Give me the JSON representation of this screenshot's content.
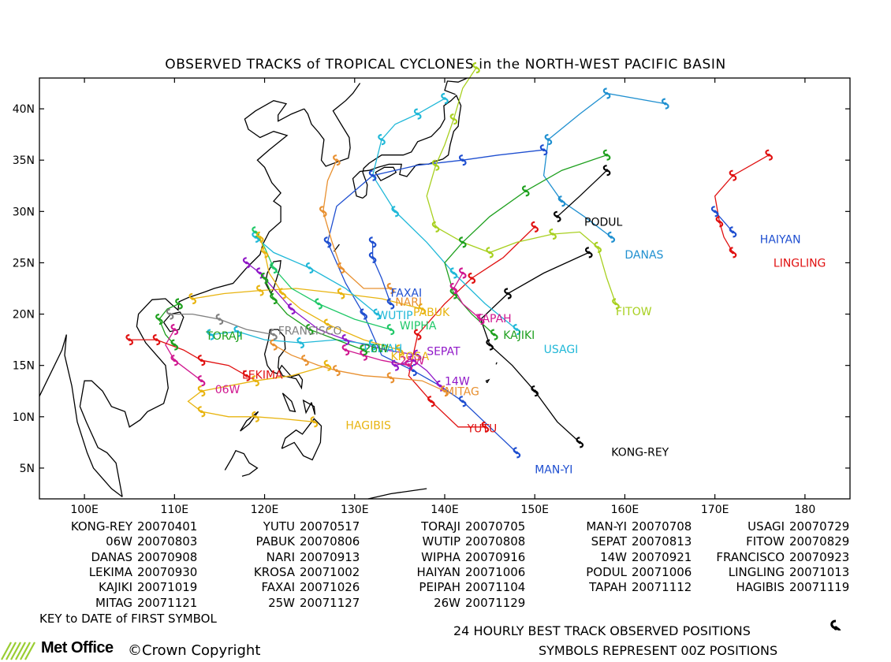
{
  "title": "OBSERVED TRACKS of TROPICAL CYCLONES in the NORTH-WEST PACIFIC BASIN",
  "map": {
    "lon_range": [
      95,
      185
    ],
    "lat_range": [
      2,
      43
    ],
    "x_ticks": [
      "100E",
      "110E",
      "120E",
      "130E",
      "140E",
      "150E",
      "160E",
      "170E",
      "180"
    ],
    "y_ticks": [
      "5N",
      "10N",
      "15N",
      "20N",
      "25N",
      "30N",
      "35N",
      "40N"
    ]
  },
  "storm_labels": [
    {
      "name": "KONG-REY",
      "color": "#000000",
      "lon": 158.5,
      "lat": 6.2
    },
    {
      "name": "YUTU",
      "color": "#e01010",
      "lon": 142.5,
      "lat": 8.5
    },
    {
      "name": "TORAJI",
      "color": "#1ea01e",
      "lon": 113.5,
      "lat": 17.5
    },
    {
      "name": "MAN-YI",
      "color": "#1f4fd0",
      "lon": 150,
      "lat": 4.5
    },
    {
      "name": "USAGI",
      "color": "#20b8d8",
      "lon": 151,
      "lat": 16.2
    },
    {
      "name": "06W",
      "color": "#d01890",
      "lon": 114.5,
      "lat": 12.3
    },
    {
      "name": "PABUK",
      "color": "#e8b410",
      "lon": 136.5,
      "lat": 19.8
    },
    {
      "name": "WUTIP",
      "color": "#20b8d8",
      "lon": 132.5,
      "lat": 19.5
    },
    {
      "name": "SEPAT",
      "color": "#9018c8",
      "lon": 138,
      "lat": 16.0
    },
    {
      "name": "FITOW",
      "color": "#a8d020",
      "lon": 159,
      "lat": 19.9
    },
    {
      "name": "DANAS",
      "color": "#2090d0",
      "lon": 160,
      "lat": 25.4
    },
    {
      "name": "NARI",
      "color": "#e89030",
      "lon": 134.5,
      "lat": 20.8
    },
    {
      "name": "WIPHA",
      "color": "#20c868",
      "lon": 135,
      "lat": 18.5
    },
    {
      "name": "14W",
      "color": "#9018c8",
      "lon": 140,
      "lat": 13.1
    },
    {
      "name": "FRANCISCO",
      "color": "#808080",
      "lon": 121.5,
      "lat": 18.0
    },
    {
      "name": "LEKIMA",
      "color": "#e01010",
      "lon": 117.5,
      "lat": 13.7
    },
    {
      "name": "KROSA",
      "color": "#e8b410",
      "lon": 134,
      "lat": 15.5
    },
    {
      "name": "HAIYAN",
      "color": "#1f4fd0",
      "lon": 175,
      "lat": 26.9
    },
    {
      "name": "PODUL",
      "color": "#000000",
      "lon": 155.5,
      "lat": 28.6
    },
    {
      "name": "LINGLING",
      "color": "#e01010",
      "lon": 176.5,
      "lat": 24.6
    },
    {
      "name": "KAJIKI",
      "color": "#1ea01e",
      "lon": 146.5,
      "lat": 17.6
    },
    {
      "name": "FAXAI",
      "color": "#1f4fd0",
      "lon": 134,
      "lat": 21.7
    },
    {
      "name": "PEIPAH",
      "color": "#20b8d8",
      "lon": 131,
      "lat": 16.3
    },
    {
      "name": "TAPAH",
      "color": "#d01890",
      "lon": 143.5,
      "lat": 19.2
    },
    {
      "name": "HAGIBIS",
      "color": "#e8b410",
      "lon": 129,
      "lat": 8.8
    },
    {
      "name": "MITAG",
      "color": "#e89030",
      "lon": 140,
      "lat": 12.1
    },
    {
      "name": "25W",
      "color": "#d01890",
      "lon": 135,
      "lat": 15.1
    },
    {
      "name": "26W",
      "color": "#1ea01e",
      "lon": 131,
      "lat": 16.3
    }
  ],
  "tracks": [
    {
      "name": "KONG-REY",
      "color": "#000000",
      "points": [
        [
          155,
          7.5
        ],
        [
          152.5,
          9.5
        ],
        [
          150,
          12.5
        ],
        [
          147.5,
          15
        ],
        [
          145,
          17
        ],
        [
          144,
          19.5
        ],
        [
          147,
          22
        ],
        [
          151,
          24
        ],
        [
          156,
          26
        ]
      ]
    },
    {
      "name": "YUTU",
      "color": "#e01010",
      "points": [
        [
          144.5,
          9
        ],
        [
          141.5,
          9
        ],
        [
          138.5,
          11.5
        ],
        [
          136,
          14
        ],
        [
          137,
          18
        ],
        [
          140,
          21
        ],
        [
          143,
          23.5
        ],
        [
          146.5,
          25.5
        ],
        [
          150,
          28.5
        ]
      ]
    },
    {
      "name": "TORAJI",
      "color": "#1ea01e",
      "points": [
        [
          110,
          17
        ],
        [
          109,
          18
        ],
        [
          108.3,
          19.5
        ],
        [
          109.2,
          20.5
        ],
        [
          110.5,
          21
        ]
      ]
    },
    {
      "name": "MAN-YI",
      "color": "#1f4fd0",
      "points": [
        [
          148,
          6.5
        ],
        [
          145,
          9
        ],
        [
          142,
          11.5
        ],
        [
          139.5,
          13
        ],
        [
          136.5,
          14.5
        ],
        [
          133,
          16
        ],
        [
          131,
          20
        ],
        [
          129,
          23
        ],
        [
          127,
          27
        ],
        [
          128,
          30.5
        ],
        [
          132,
          33.5
        ],
        [
          137,
          34.5
        ],
        [
          142,
          35
        ],
        [
          146,
          35.5
        ],
        [
          151,
          36
        ]
      ]
    },
    {
      "name": "USAGI",
      "color": "#20b8d8",
      "points": [
        [
          148,
          18.5
        ],
        [
          144.5,
          21
        ],
        [
          141,
          24
        ],
        [
          138,
          27
        ],
        [
          134.5,
          30
        ],
        [
          132,
          33.5
        ],
        [
          133,
          37
        ],
        [
          134.5,
          38.5
        ],
        [
          137,
          39.5
        ],
        [
          140,
          41
        ]
      ]
    },
    {
      "name": "06W",
      "color": "#d01890",
      "points": [
        [
          113,
          13.5
        ],
        [
          111.5,
          14.5
        ],
        [
          110,
          15.5
        ],
        [
          109,
          17
        ],
        [
          110,
          18.5
        ]
      ]
    },
    {
      "name": "PABUK",
      "color": "#e8b410",
      "points": [
        [
          137.5,
          20.5
        ],
        [
          133,
          21.5
        ],
        [
          128.5,
          22
        ],
        [
          123.5,
          22.5
        ],
        [
          119.5,
          22.3
        ],
        [
          115.5,
          22
        ],
        [
          112,
          21.5
        ]
      ]
    },
    {
      "name": "WUTIP",
      "color": "#20b8d8",
      "points": [
        [
          132.5,
          20
        ],
        [
          129,
          22.5
        ],
        [
          125,
          24.5
        ],
        [
          121,
          26
        ],
        [
          119,
          27.5
        ]
      ]
    },
    {
      "name": "SEPAT",
      "color": "#9018c8",
      "points": [
        [
          137,
          16
        ],
        [
          133.5,
          16.5
        ],
        [
          129,
          17.5
        ],
        [
          126,
          18.5
        ],
        [
          123,
          20.5
        ],
        [
          121,
          22.5
        ],
        [
          119.5,
          24
        ],
        [
          118,
          25
        ]
      ]
    },
    {
      "name": "FITOW",
      "color": "#a8d020",
      "points": [
        [
          159,
          21
        ],
        [
          158,
          23.5
        ],
        [
          157,
          26.5
        ],
        [
          155,
          28
        ],
        [
          152,
          27.8
        ],
        [
          148,
          27
        ],
        [
          145,
          26
        ],
        [
          142,
          27
        ],
        [
          139,
          28.5
        ],
        [
          138,
          31.5
        ],
        [
          139,
          34.5
        ],
        [
          140,
          36.5
        ],
        [
          141,
          39
        ],
        [
          142,
          42
        ],
        [
          143.5,
          44
        ]
      ]
    },
    {
      "name": "DANAS",
      "color": "#2090d0",
      "points": [
        [
          158.5,
          27.5
        ],
        [
          155.5,
          29.5
        ],
        [
          153,
          31
        ],
        [
          151,
          33.5
        ],
        [
          151.5,
          37
        ],
        [
          155,
          39.5
        ],
        [
          158,
          41.5
        ],
        [
          164.5,
          40.5
        ]
      ]
    },
    {
      "name": "NARI",
      "color": "#e89030",
      "points": [
        [
          134,
          22.5
        ],
        [
          131,
          22.5
        ],
        [
          128.5,
          24.5
        ],
        [
          127.5,
          27
        ],
        [
          126.5,
          30
        ],
        [
          127,
          33
        ],
        [
          128,
          35
        ]
      ]
    },
    {
      "name": "WIPHA",
      "color": "#20c868",
      "points": [
        [
          134,
          18.5
        ],
        [
          130,
          19.5
        ],
        [
          126,
          21
        ],
        [
          123,
          22.5
        ],
        [
          121,
          24.5
        ],
        [
          120,
          26.5
        ],
        [
          119,
          28
        ]
      ]
    },
    {
      "name": "14W",
      "color": "#9018c8",
      "points": [
        [
          139.5,
          13
        ],
        [
          138,
          14.5
        ],
        [
          136.5,
          15.5
        ],
        [
          134.5,
          15
        ]
      ]
    },
    {
      "name": "FRANCISCO",
      "color": "#808080",
      "points": [
        [
          121,
          18
        ],
        [
          118,
          18.5
        ],
        [
          115,
          19.5
        ],
        [
          112,
          20
        ],
        [
          109.5,
          20
        ]
      ]
    },
    {
      "name": "LEKIMA",
      "color": "#e01010",
      "points": [
        [
          118,
          14
        ],
        [
          116,
          15
        ],
        [
          113,
          15.5
        ],
        [
          111,
          16.5
        ],
        [
          108,
          17.5
        ],
        [
          105,
          17.5
        ]
      ]
    },
    {
      "name": "KROSA",
      "color": "#e8b410",
      "points": [
        [
          135,
          16.5
        ],
        [
          131,
          17.5
        ],
        [
          127,
          19
        ],
        [
          124,
          20.5
        ],
        [
          122,
          22
        ],
        [
          120.5,
          24
        ],
        [
          120,
          26
        ],
        [
          119.5,
          27.5
        ]
      ]
    },
    {
      "name": "HAIYAN",
      "color": "#1f4fd0",
      "points": [
        [
          172,
          28
        ],
        [
          171,
          29
        ],
        [
          170,
          30
        ]
      ]
    },
    {
      "name": "PODUL",
      "color": "#000000",
      "points": [
        [
          158,
          34
        ],
        [
          155,
          31.5
        ],
        [
          152.5,
          29.5
        ]
      ]
    },
    {
      "name": "LINGLING",
      "color": "#e01010",
      "points": [
        [
          172,
          26
        ],
        [
          171,
          27.5
        ],
        [
          170.5,
          29
        ],
        [
          170,
          31.5
        ],
        [
          172,
          33.5
        ],
        [
          175,
          35
        ],
        [
          176,
          35.5
        ]
      ]
    },
    {
      "name": "KAJIKI",
      "color": "#1ea01e",
      "points": [
        [
          145.5,
          18
        ],
        [
          143,
          20
        ],
        [
          141,
          22
        ],
        [
          140,
          25
        ],
        [
          142,
          27
        ],
        [
          145,
          29.5
        ],
        [
          149,
          32
        ],
        [
          153,
          34
        ],
        [
          158,
          35.5
        ]
      ]
    },
    {
      "name": "FAXAI",
      "color": "#1f4fd0",
      "points": [
        [
          134,
          21
        ],
        [
          133,
          23.5
        ],
        [
          132,
          25.5
        ],
        [
          132,
          27
        ]
      ]
    },
    {
      "name": "PEIPAH",
      "color": "#20b8d8",
      "points": [
        [
          132,
          17
        ],
        [
          128,
          17.5
        ],
        [
          124,
          17.2
        ],
        [
          120,
          17.5
        ],
        [
          117,
          18.3
        ],
        [
          114,
          18
        ]
      ]
    },
    {
      "name": "TAPAH",
      "color": "#d01890",
      "points": [
        [
          144,
          19.5
        ],
        [
          142,
          21
        ],
        [
          141,
          22.5
        ],
        [
          142,
          24
        ]
      ]
    },
    {
      "name": "HAGIBIS",
      "color": "#e8b410",
      "points": [
        [
          125.5,
          9.5
        ],
        [
          122,
          9.8
        ],
        [
          119,
          10
        ],
        [
          116,
          10
        ],
        [
          113,
          10.5
        ],
        [
          111.5,
          11.5
        ],
        [
          113,
          12.5
        ],
        [
          116,
          13
        ],
        [
          119,
          13.5
        ],
        [
          123,
          14
        ],
        [
          127,
          15
        ]
      ]
    },
    {
      "name": "MITAG",
      "color": "#e89030",
      "points": [
        [
          140,
          12.5
        ],
        [
          137.5,
          13.5
        ],
        [
          134,
          13.8
        ],
        [
          131,
          14
        ],
        [
          128,
          14.5
        ],
        [
          126,
          15
        ],
        [
          124.5,
          15.5
        ],
        [
          123,
          16
        ],
        [
          121,
          17
        ]
      ]
    },
    {
      "name": "25W",
      "color": "#d01890",
      "points": [
        [
          136,
          15
        ],
        [
          133,
          15.5
        ],
        [
          131,
          16
        ],
        [
          129,
          16.5
        ]
      ]
    },
    {
      "name": "26W",
      "color": "#1ea01e",
      "points": [
        [
          131,
          16.5
        ],
        [
          128,
          17.5
        ],
        [
          125,
          18.5
        ],
        [
          122.5,
          20
        ],
        [
          121,
          21.5
        ],
        [
          120,
          23.5
        ]
      ]
    }
  ],
  "key": {
    "columns": [
      [
        [
          "KONG-REY",
          "20070401"
        ],
        [
          "06W",
          "20070803"
        ],
        [
          "DANAS",
          "20070908"
        ],
        [
          "LEKIMA",
          "20070930"
        ],
        [
          "KAJIKI",
          "20071019"
        ],
        [
          "MITAG",
          "20071121"
        ]
      ],
      [
        [
          "YUTU",
          "20070517"
        ],
        [
          "PABUK",
          "20070806"
        ],
        [
          "NARI",
          "20070913"
        ],
        [
          "KROSA",
          "20071002"
        ],
        [
          "FAXAI",
          "20071026"
        ],
        [
          "25W",
          "20071127"
        ]
      ],
      [
        [
          "TORAJI",
          "20070705"
        ],
        [
          "WUTIP",
          "20070808"
        ],
        [
          "WIPHA",
          "20070916"
        ],
        [
          "HAIYAN",
          "20071006"
        ],
        [
          "PEIPAH",
          "20071104"
        ],
        [
          "26W",
          "20071129"
        ]
      ],
      [
        [
          "MAN-YI",
          "20070708"
        ],
        [
          "SEPAT",
          "20070813"
        ],
        [
          "14W",
          "20070921"
        ],
        [
          "PODUL",
          "20071006"
        ],
        [
          "TAPAH",
          "20071112"
        ]
      ],
      [
        [
          "USAGI",
          "20070729"
        ],
        [
          "FITOW",
          "20070829"
        ],
        [
          "FRANCISCO",
          "20070923"
        ],
        [
          "LINGLING",
          "20071013"
        ],
        [
          "HAGIBIS",
          "20071119"
        ]
      ]
    ]
  },
  "key_note": "KEY to DATE of FIRST SYMBOL",
  "best_track_note": "24 HOURLY BEST TRACK OBSERVED POSITIONS",
  "symbols_note": "SYMBOLS REPRESENT 00Z POSITIONS",
  "logo_text": "Met Office",
  "copyright": "©Crown Copyright",
  "legend_symbol": "cyclone-symbol-icon"
}
